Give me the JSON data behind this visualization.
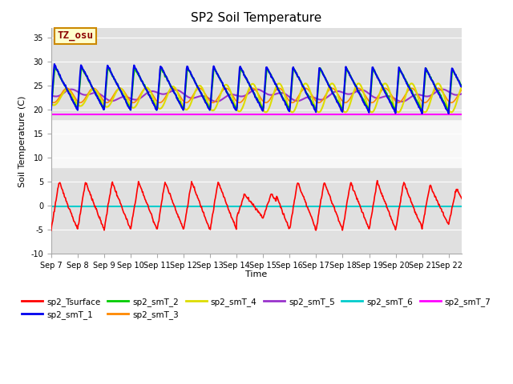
{
  "title": "SP2 Soil Temperature",
  "ylabel": "Soil Temperature (C)",
  "xlabel": "Time",
  "annotation": "TZ_osu",
  "annotation_color": "#8b0000",
  "annotation_bg": "#ffffcc",
  "annotation_border": "#cc8800",
  "ylim": [
    -10,
    37
  ],
  "yticks": [
    -10,
    -5,
    0,
    5,
    10,
    15,
    20,
    25,
    30,
    35
  ],
  "n_days": 15.5,
  "n_points": 744,
  "series_order": [
    "sp2_smT_7",
    "sp2_smT_6",
    "sp2_smT_5",
    "sp2_smT_3",
    "sp2_smT_4",
    "sp2_smT_2",
    "sp2_smT_1",
    "sp2_Tsurface"
  ],
  "series": {
    "sp2_Tsurface": {
      "color": "#ff0000",
      "lw": 1.2,
      "zorder": 5
    },
    "sp2_smT_1": {
      "color": "#0000ee",
      "lw": 1.5,
      "zorder": 4
    },
    "sp2_smT_2": {
      "color": "#00cc00",
      "lw": 1.5,
      "zorder": 4
    },
    "sp2_smT_3": {
      "color": "#ff8800",
      "lw": 1.2,
      "zorder": 3
    },
    "sp2_smT_4": {
      "color": "#dddd00",
      "lw": 1.5,
      "zorder": 3
    },
    "sp2_smT_5": {
      "color": "#9933cc",
      "lw": 1.5,
      "zorder": 3
    },
    "sp2_smT_6": {
      "color": "#00cccc",
      "lw": 1.5,
      "zorder": 2
    },
    "sp2_smT_7": {
      "color": "#ff00ff",
      "lw": 1.5,
      "zorder": 2
    }
  },
  "bg_bands": [
    {
      "ymin": -10,
      "ymax": 8,
      "color": "#e0e0e0"
    },
    {
      "ymin": 8,
      "ymax": 18,
      "color": "#f8f8f8"
    },
    {
      "ymin": 18,
      "ymax": 37,
      "color": "#e0e0e0"
    }
  ],
  "legend_order": [
    "sp2_Tsurface",
    "sp2_smT_1",
    "sp2_smT_2",
    "sp2_smT_3",
    "sp2_smT_4",
    "sp2_smT_5",
    "sp2_smT_6",
    "sp2_smT_7"
  ]
}
